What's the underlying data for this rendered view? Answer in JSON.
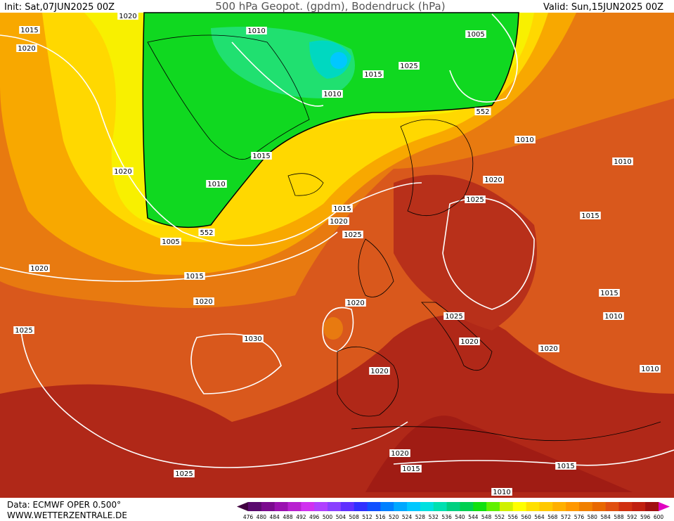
{
  "header": {
    "init": "Init: Sat,07JUN2025 00Z",
    "title": "500 hPa Geopot. (gpdm), Bodendruck (hPa)",
    "valid": "Valid: Sun,15JUN2025 00Z"
  },
  "isobar_labels": [
    1020,
    1015,
    1020,
    1010,
    1005,
    1025,
    1015,
    1010,
    552,
    1010,
    1015,
    1020,
    1010,
    1020,
    1010,
    1025,
    1015,
    1020,
    1015,
    1025,
    552,
    1005,
    1020,
    1015,
    1020,
    1020,
    1015,
    1025,
    1010,
    1025,
    1030,
    1020,
    1020,
    1020,
    1010,
    1020,
    1015,
    1015,
    1025,
    1010
  ],
  "footer": {
    "data": "Data: ECMWF OPER 0.500°",
    "website": "WWW.WETTERZENTRALE.DE"
  },
  "colorbar": {
    "labels": [
      476,
      480,
      484,
      488,
      492,
      496,
      500,
      504,
      508,
      512,
      516,
      520,
      524,
      528,
      532,
      536,
      540,
      544,
      548,
      552,
      556,
      560,
      564,
      568,
      572,
      576,
      580,
      584,
      588,
      592,
      596,
      600
    ],
    "colors": [
      "#5a0a6e",
      "#7a0a8e",
      "#9a10b0",
      "#b820d0",
      "#d030f0",
      "#b040ff",
      "#8a40ff",
      "#6030ff",
      "#3030ff",
      "#1050ff",
      "#0080ff",
      "#00a8ff",
      "#00c8ff",
      "#00e0e0",
      "#00e0b0",
      "#00d080",
      "#00d050",
      "#10e010",
      "#60f000",
      "#d0f000",
      "#ffff00",
      "#ffe000",
      "#ffc800",
      "#ffb000",
      "#ff9800",
      "#f08000",
      "#e86800",
      "#e05010",
      "#d03010",
      "#c02010",
      "#a01010"
    ],
    "low_color": "#400040",
    "high_color": "#e000c0"
  }
}
